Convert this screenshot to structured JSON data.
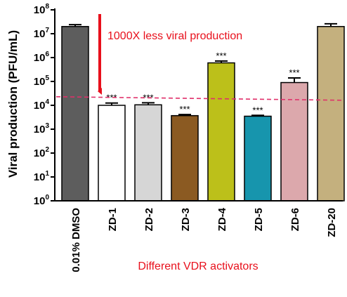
{
  "chart_data": {
    "type": "bar",
    "title": "",
    "xlabel": "Different VDR activators",
    "ylabel": "Viral production (PFU/mL)",
    "y_scale": "log",
    "ylim": [
      1,
      100000000
    ],
    "y_ticks": [
      {
        "base": "10",
        "exp": "0",
        "value": 1
      },
      {
        "base": "10",
        "exp": "1",
        "value": 10
      },
      {
        "base": "10",
        "exp": "2",
        "value": 100
      },
      {
        "base": "10",
        "exp": "3",
        "value": 1000
      },
      {
        "base": "10",
        "exp": "4",
        "value": 10000
      },
      {
        "base": "10",
        "exp": "5",
        "value": 100000
      },
      {
        "base": "10",
        "exp": "6",
        "value": 1000000
      },
      {
        "base": "10",
        "exp": "7",
        "value": 10000000
      },
      {
        "base": "10",
        "exp": "8",
        "value": 100000000
      }
    ],
    "categories": [
      "0.01% DMSO",
      "ZD-1",
      "ZD-2",
      "ZD-3",
      "ZD-4",
      "ZD-5",
      "ZD-6",
      "ZD-20"
    ],
    "values": [
      20000000,
      10000,
      10500,
      3700,
      600000,
      3500,
      90000,
      20000000
    ],
    "error_upper": [
      24000000,
      12500,
      12800,
      4100,
      720000,
      3800,
      140000,
      26000000
    ],
    "bar_colors": [
      "#5d5d5d",
      "#ffffff",
      "#d6d6d6",
      "#8b5a22",
      "#bcc01a",
      "#1795ad",
      "#dca8ac",
      "#c4b07e"
    ],
    "significance": [
      "",
      "***",
      "***",
      "***",
      "***",
      "***",
      "***",
      ""
    ],
    "reference_line": {
      "value": 20000,
      "color": "#e0306a"
    },
    "annotation": {
      "text": "1000X less viral production",
      "color": "#e8101c"
    },
    "grid": false,
    "legend": "none"
  }
}
